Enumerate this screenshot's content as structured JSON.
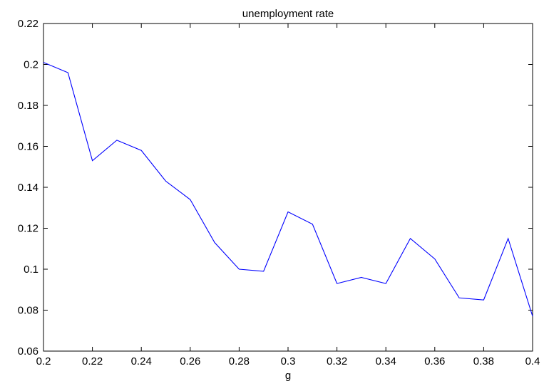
{
  "chart_data": {
    "type": "line",
    "title": "unemployment rate",
    "xlabel": "g",
    "ylabel": "",
    "xlim": [
      0.2,
      0.4
    ],
    "ylim": [
      0.06,
      0.22
    ],
    "grid": false,
    "x_ticks": [
      "0.2",
      "0.22",
      "0.24",
      "0.26",
      "0.28",
      "0.3",
      "0.32",
      "0.34",
      "0.36",
      "0.38",
      "0.4"
    ],
    "y_ticks": [
      "0.06",
      "0.08",
      "0.1",
      "0.12",
      "0.14",
      "0.16",
      "0.18",
      "0.2",
      "0.22"
    ],
    "series": [
      {
        "color": "#0000ff",
        "x": [
          0.2,
          0.21,
          0.22,
          0.23,
          0.24,
          0.25,
          0.26,
          0.27,
          0.28,
          0.29,
          0.3,
          0.31,
          0.32,
          0.33,
          0.34,
          0.35,
          0.36,
          0.37,
          0.38,
          0.39,
          0.4
        ],
        "y": [
          0.201,
          0.196,
          0.153,
          0.163,
          0.158,
          0.143,
          0.134,
          0.113,
          0.1,
          0.099,
          0.128,
          0.122,
          0.093,
          0.096,
          0.093,
          0.115,
          0.105,
          0.086,
          0.085,
          0.115,
          0.077
        ]
      }
    ]
  }
}
